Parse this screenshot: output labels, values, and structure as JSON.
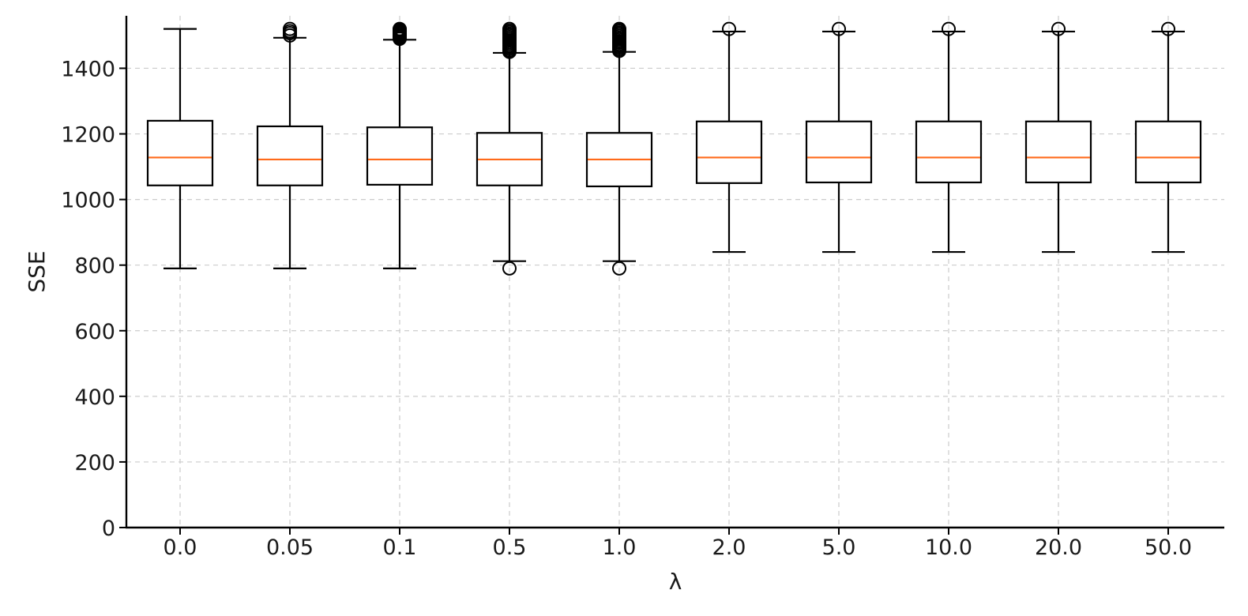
{
  "chart_data": {
    "type": "box",
    "title": "",
    "xlabel": "λ",
    "ylabel": "SSE",
    "ylim": [
      0,
      1560
    ],
    "yticks": [
      0,
      200,
      400,
      600,
      800,
      1000,
      1200,
      1400
    ],
    "grid": true,
    "colors": {
      "box": "#000000",
      "median": "#ff6a1a",
      "grid": "#cccccc",
      "axis": "#000000",
      "text": "#1a1a1a"
    },
    "categories": [
      "0.0",
      "0.05",
      "0.1",
      "0.5",
      "1.0",
      "2.0",
      "5.0",
      "10.0",
      "20.0",
      "50.0"
    ],
    "boxes": [
      {
        "label": "0.0",
        "whisker_low": 790,
        "q1": 1043,
        "median": 1128,
        "q3": 1240,
        "whisker_high": 1520,
        "outliers": []
      },
      {
        "label": "0.05",
        "whisker_low": 790,
        "q1": 1043,
        "median": 1122,
        "q3": 1223,
        "whisker_high": 1493,
        "outliers": [
          1500,
          1507,
          1513,
          1520
        ]
      },
      {
        "label": "0.1",
        "whisker_low": 790,
        "q1": 1045,
        "median": 1122,
        "q3": 1220,
        "whisker_high": 1487,
        "outliers": [
          1490,
          1494,
          1498,
          1502,
          1506,
          1510,
          1514,
          1518,
          1520
        ]
      },
      {
        "label": "0.5",
        "whisker_low": 812,
        "q1": 1043,
        "median": 1122,
        "q3": 1203,
        "whisker_high": 1447,
        "outliers": [
          790,
          1450,
          1455,
          1460,
          1465,
          1470,
          1475,
          1480,
          1485,
          1490,
          1495,
          1500,
          1505,
          1510,
          1515,
          1520
        ]
      },
      {
        "label": "1.0",
        "whisker_low": 812,
        "q1": 1040,
        "median": 1122,
        "q3": 1203,
        "whisker_high": 1450,
        "outliers": [
          790,
          1453,
          1458,
          1463,
          1468,
          1473,
          1478,
          1483,
          1488,
          1493,
          1498,
          1503,
          1508,
          1513,
          1518,
          1520
        ]
      },
      {
        "label": "2.0",
        "whisker_low": 840,
        "q1": 1050,
        "median": 1128,
        "q3": 1238,
        "whisker_high": 1512,
        "outliers": [
          1520
        ]
      },
      {
        "label": "5.0",
        "whisker_low": 840,
        "q1": 1052,
        "median": 1128,
        "q3": 1238,
        "whisker_high": 1512,
        "outliers": [
          1520
        ]
      },
      {
        "label": "10.0",
        "whisker_low": 840,
        "q1": 1052,
        "median": 1128,
        "q3": 1238,
        "whisker_high": 1512,
        "outliers": [
          1520
        ]
      },
      {
        "label": "20.0",
        "whisker_low": 840,
        "q1": 1052,
        "median": 1128,
        "q3": 1238,
        "whisker_high": 1512,
        "outliers": [
          1520
        ]
      },
      {
        "label": "50.0",
        "whisker_low": 840,
        "q1": 1052,
        "median": 1128,
        "q3": 1238,
        "whisker_high": 1512,
        "outliers": [
          1520
        ]
      }
    ]
  }
}
